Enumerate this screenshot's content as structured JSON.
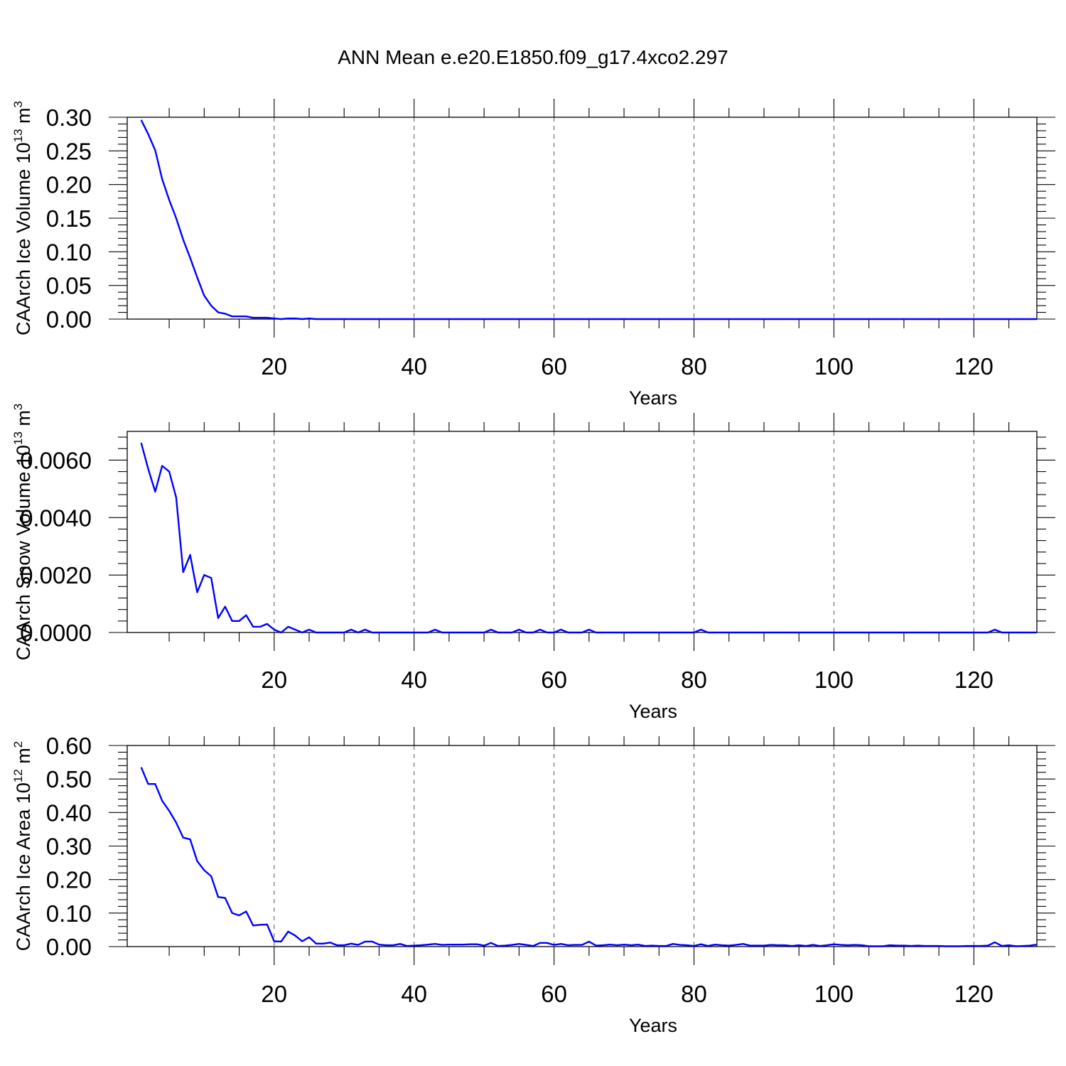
{
  "title": "ANN Mean e.e20.E1850.f09_g17.4xco2.297",
  "colors": {
    "series": "#0000ff",
    "axes": "#000000",
    "grid": "#555555"
  },
  "chart_data": [
    {
      "type": "line",
      "title": "",
      "xlabel": "Years",
      "ylabel": "CAArch Ice Volume 10",
      "ylabel_exp": "13",
      "ylabel_unit": "m",
      "ylabel_unit_exp": "3",
      "xlim": [
        -1,
        129
      ],
      "ylim": [
        0,
        0.3
      ],
      "x_ticks": [
        20,
        40,
        60,
        80,
        100,
        120
      ],
      "y_ticks": [
        0.0,
        0.05,
        0.1,
        0.15,
        0.2,
        0.25,
        0.3
      ],
      "y_tick_labels": [
        "0.00",
        "0.05",
        "0.10",
        "0.15",
        "0.20",
        "0.25",
        "0.30"
      ],
      "x_grid": "dashed",
      "start_year": 1,
      "values": [
        0.296,
        0.275,
        0.251,
        0.208,
        0.177,
        0.15,
        0.118,
        0.091,
        0.062,
        0.035,
        0.02,
        0.01,
        0.008,
        0.004,
        0.004,
        0.004,
        0.002,
        0.002,
        0.002,
        0.001,
        0.0,
        0.001,
        0.001,
        0.0,
        0.001,
        0.0,
        0.0,
        0.0,
        0.0,
        0.0,
        0.0,
        0.0,
        0.0,
        0.0,
        0.0,
        0.0,
        0.0,
        0.0,
        0.0,
        0.0,
        0.0,
        0.0,
        0.0,
        0.0,
        0.0,
        0.0,
        0.0,
        0.0,
        0.0,
        0.0,
        0.0,
        0.0,
        0.0,
        0.0,
        0.0,
        0.0,
        0.0,
        0.0,
        0.0,
        0.0,
        0.0,
        0.0,
        0.0,
        0.0,
        0.0,
        0.0,
        0.0,
        0.0,
        0.0,
        0.0,
        0.0,
        0.0,
        0.0,
        0.0,
        0.0,
        0.0,
        0.0,
        0.0,
        0.0,
        0.0,
        0.0,
        0.0,
        0.0,
        0.0,
        0.0,
        0.0,
        0.0,
        0.0,
        0.0,
        0.0,
        0.0,
        0.0,
        0.0,
        0.0,
        0.0,
        0.0,
        0.0,
        0.0,
        0.0,
        0.0,
        0.0,
        0.0,
        0.0,
        0.0,
        0.0,
        0.0,
        0.0,
        0.0,
        0.0,
        0.0,
        0.0,
        0.0,
        0.0,
        0.0,
        0.0,
        0.0,
        0.0,
        0.0,
        0.0,
        0.0,
        0.0,
        0.0,
        0.0,
        0.0,
        0.0,
        0.0,
        0.0,
        0.0,
        0.0
      ]
    },
    {
      "type": "line",
      "title": "",
      "xlabel": "Years",
      "ylabel": "CAArch Snow Volume 10",
      "ylabel_exp": "13",
      "ylabel_unit": "m",
      "ylabel_unit_exp": "3",
      "xlim": [
        -1,
        129
      ],
      "ylim": [
        0,
        0.007
      ],
      "x_ticks": [
        20,
        40,
        60,
        80,
        100,
        120
      ],
      "y_ticks": [
        0.0,
        0.002,
        0.004,
        0.006
      ],
      "y_tick_labels": [
        "0.0000",
        "0.0020",
        "0.0040",
        "0.0060"
      ],
      "x_grid": "dashed",
      "start_year": 1,
      "values": [
        0.0066,
        0.0057,
        0.0049,
        0.0058,
        0.0056,
        0.0047,
        0.0021,
        0.0027,
        0.0014,
        0.002,
        0.0019,
        0.0005,
        0.0009,
        0.0004,
        0.0004,
        0.0006,
        0.0002,
        0.0002,
        0.0003,
        0.0001,
        0.0,
        0.0002,
        0.0001,
        0.0,
        0.0001,
        0.0,
        0.0,
        0.0,
        0.0,
        0.0,
        0.0001,
        0.0,
        0.0001,
        0.0,
        0.0,
        0.0,
        0.0,
        0.0,
        0.0,
        0.0,
        0.0,
        0.0,
        0.0001,
        0.0,
        0.0,
        0.0,
        0.0,
        0.0,
        0.0,
        0.0,
        0.0001,
        0.0,
        0.0,
        0.0,
        0.0001,
        0.0,
        0.0,
        0.0001,
        0.0,
        0.0,
        0.0001,
        0.0,
        0.0,
        0.0,
        0.0001,
        0.0,
        0.0,
        0.0,
        0.0,
        0.0,
        0.0,
        0.0,
        0.0,
        0.0,
        0.0,
        0.0,
        0.0,
        0.0,
        0.0,
        0.0,
        0.0001,
        0.0,
        0.0,
        0.0,
        0.0,
        0.0,
        0.0,
        0.0,
        0.0,
        0.0,
        0.0,
        0.0,
        0.0,
        0.0,
        0.0,
        0.0,
        0.0,
        0.0,
        0.0,
        0.0,
        0.0,
        0.0,
        0.0,
        0.0,
        0.0,
        0.0,
        0.0,
        0.0,
        0.0,
        0.0,
        0.0,
        0.0,
        0.0,
        0.0,
        0.0,
        0.0,
        0.0,
        0.0,
        0.0,
        0.0,
        0.0,
        0.0,
        0.0001,
        0.0,
        0.0,
        0.0,
        0.0,
        0.0,
        0.0
      ]
    },
    {
      "type": "line",
      "title": "",
      "xlabel": "Years",
      "ylabel": "CAArch Ice Area 10",
      "ylabel_exp": "12",
      "ylabel_unit": "m",
      "ylabel_unit_exp": "2",
      "xlim": [
        -1,
        129
      ],
      "ylim": [
        0,
        0.6
      ],
      "x_ticks": [
        20,
        40,
        60,
        80,
        100,
        120
      ],
      "y_ticks": [
        0.0,
        0.1,
        0.2,
        0.3,
        0.4,
        0.5,
        0.6
      ],
      "y_tick_labels": [
        "0.00",
        "0.10",
        "0.20",
        "0.30",
        "0.40",
        "0.50",
        "0.60"
      ],
      "x_grid": "dashed",
      "start_year": 1,
      "values": [
        0.535,
        0.485,
        0.485,
        0.435,
        0.405,
        0.37,
        0.325,
        0.32,
        0.255,
        0.228,
        0.21,
        0.148,
        0.145,
        0.1,
        0.093,
        0.105,
        0.063,
        0.065,
        0.066,
        0.016,
        0.015,
        0.045,
        0.033,
        0.016,
        0.028,
        0.009,
        0.009,
        0.012,
        0.004,
        0.004,
        0.009,
        0.005,
        0.015,
        0.015,
        0.006,
        0.004,
        0.004,
        0.008,
        0.002,
        0.003,
        0.004,
        0.006,
        0.008,
        0.005,
        0.006,
        0.006,
        0.006,
        0.007,
        0.007,
        0.003,
        0.011,
        0.002,
        0.003,
        0.005,
        0.008,
        0.005,
        0.002,
        0.011,
        0.011,
        0.005,
        0.008,
        0.004,
        0.005,
        0.005,
        0.015,
        0.003,
        0.004,
        0.006,
        0.004,
        0.006,
        0.004,
        0.006,
        0.002,
        0.003,
        0.002,
        0.002,
        0.008,
        0.005,
        0.004,
        0.002,
        0.007,
        0.002,
        0.006,
        0.004,
        0.003,
        0.005,
        0.008,
        0.003,
        0.003,
        0.003,
        0.005,
        0.004,
        0.004,
        0.002,
        0.004,
        0.002,
        0.005,
        0.002,
        0.004,
        0.007,
        0.005,
        0.004,
        0.005,
        0.004,
        0.001,
        0.001,
        0.001,
        0.004,
        0.003,
        0.003,
        0.002,
        0.003,
        0.002,
        0.002,
        0.002,
        0.001,
        0.001,
        0.001,
        0.002,
        0.002,
        0.002,
        0.003,
        0.013,
        0.002,
        0.004,
        0.001,
        0.002,
        0.003,
        0.006
      ]
    }
  ]
}
